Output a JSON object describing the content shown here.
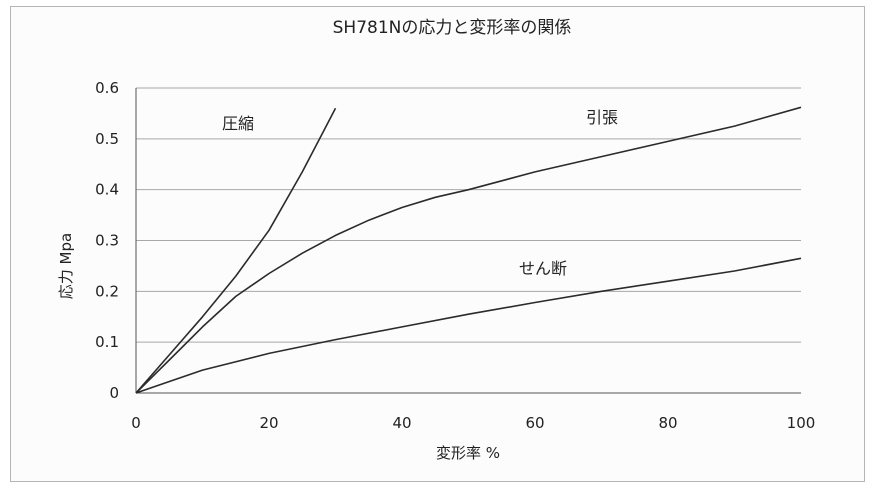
{
  "chart_data": {
    "type": "line",
    "title": "SH781Nの応力と変形率の関係",
    "xlabel": "変形率 %",
    "ylabel": "応力 Mpa",
    "xlim": [
      0,
      100
    ],
    "ylim": [
      0,
      0.6
    ],
    "xticks": [
      0,
      20,
      40,
      60,
      80,
      100
    ],
    "yticks": [
      0,
      0.1,
      0.2,
      0.3,
      0.4,
      0.5,
      0.6
    ],
    "grid": "horizontal",
    "legend": "none (series labelled inline)",
    "series": [
      {
        "name": "圧縮",
        "points": [
          [
            0,
            0
          ],
          [
            5,
            0.075
          ],
          [
            10,
            0.15
          ],
          [
            15,
            0.23
          ],
          [
            20,
            0.32
          ],
          [
            25,
            0.435
          ],
          [
            30,
            0.56
          ]
        ]
      },
      {
        "name": "引張",
        "points": [
          [
            0,
            0
          ],
          [
            5,
            0.065
          ],
          [
            10,
            0.13
          ],
          [
            15,
            0.19
          ],
          [
            20,
            0.235
          ],
          [
            25,
            0.275
          ],
          [
            30,
            0.31
          ],
          [
            35,
            0.34
          ],
          [
            40,
            0.365
          ],
          [
            45,
            0.385
          ],
          [
            50,
            0.4
          ],
          [
            60,
            0.435
          ],
          [
            70,
            0.465
          ],
          [
            80,
            0.495
          ],
          [
            90,
            0.525
          ],
          [
            100,
            0.562
          ]
        ]
      },
      {
        "name": "せん断",
        "points": [
          [
            0,
            0
          ],
          [
            10,
            0.045
          ],
          [
            20,
            0.078
          ],
          [
            30,
            0.105
          ],
          [
            40,
            0.13
          ],
          [
            50,
            0.155
          ],
          [
            60,
            0.178
          ],
          [
            70,
            0.2
          ],
          [
            80,
            0.22
          ],
          [
            90,
            0.24
          ],
          [
            100,
            0.265
          ]
        ]
      }
    ]
  },
  "colors": {
    "line": "#2b2b2b",
    "grid": "#a8a8a8",
    "axis": "#555555",
    "text": "#222222"
  }
}
